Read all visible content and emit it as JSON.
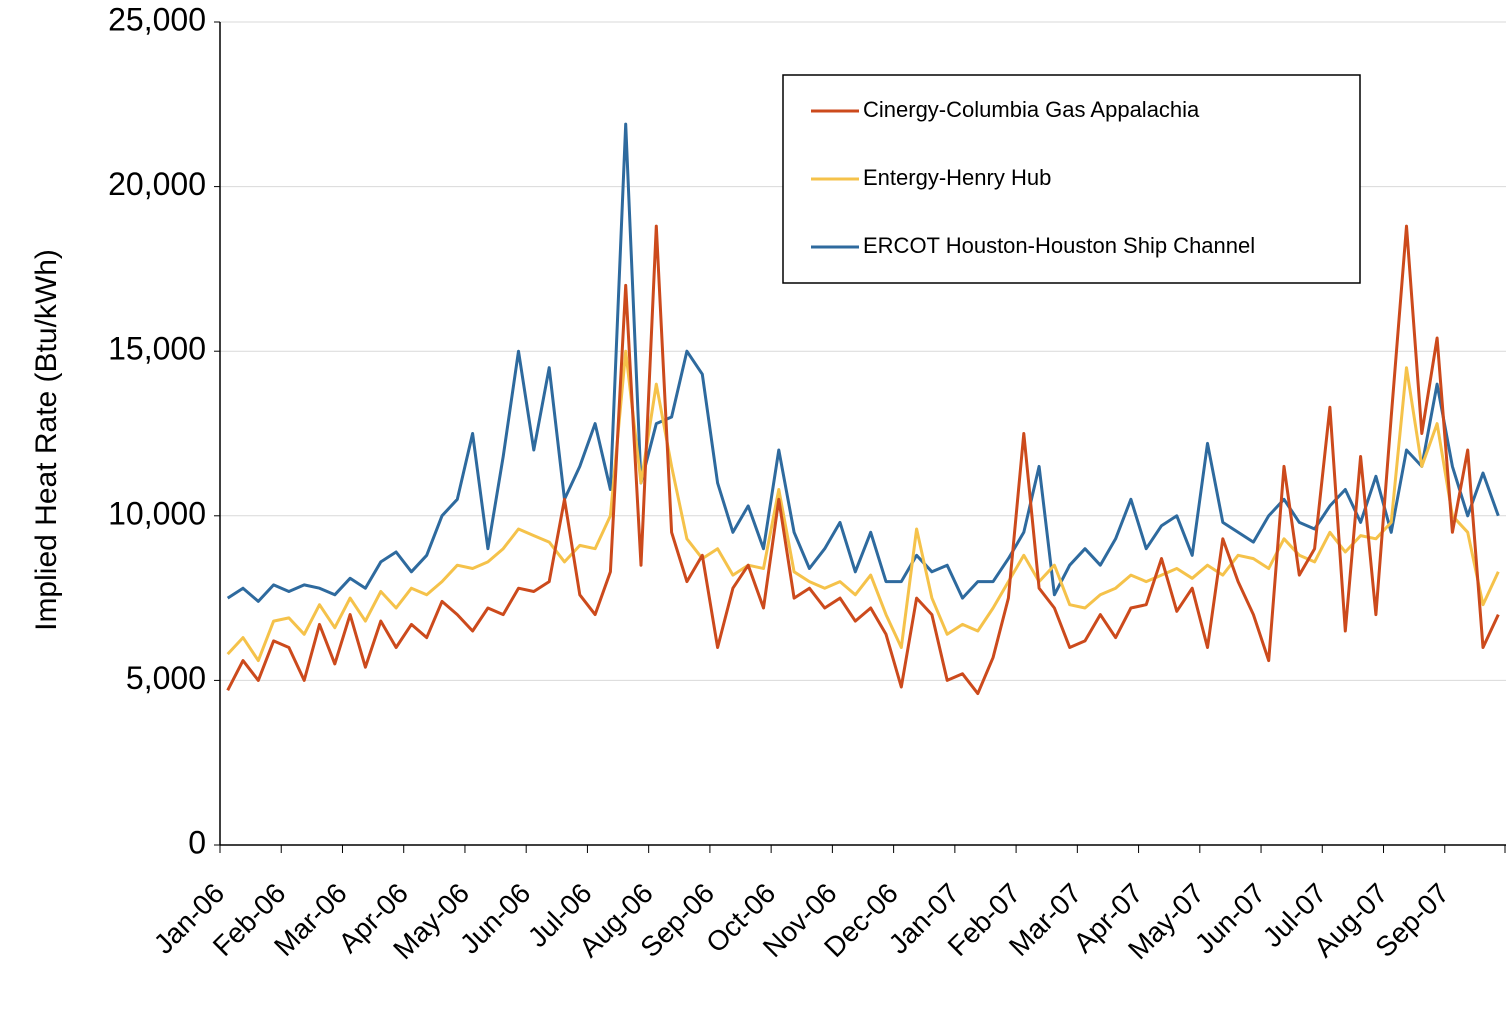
{
  "chart_data": {
    "type": "line",
    "y_label": "Implied Heat Rate (Btu/kWh)",
    "categories": [
      "Jan-06",
      null,
      null,
      null,
      "Feb-06",
      null,
      null,
      null,
      "Mar-06",
      null,
      null,
      null,
      "Apr-06",
      null,
      null,
      null,
      "May-06",
      null,
      null,
      null,
      "Jun-06",
      null,
      null,
      null,
      "Jul-06",
      null,
      null,
      null,
      "Aug-06",
      null,
      null,
      null,
      "Sep-06",
      null,
      null,
      null,
      "Oct-06",
      null,
      null,
      null,
      "Nov-06",
      null,
      null,
      null,
      "Dec-06",
      null,
      null,
      null,
      "Jan-07",
      null,
      null,
      null,
      "Feb-07",
      null,
      null,
      null,
      "Mar-07",
      null,
      null,
      null,
      "Apr-07",
      null,
      null,
      null,
      "May-07",
      null,
      null,
      null,
      "Jun-07",
      null,
      null,
      null,
      "Jul-07",
      null,
      null,
      null,
      "Aug-07",
      null,
      null,
      null,
      "Sep-07",
      null,
      null,
      null
    ],
    "series": [
      {
        "name": "Cinergy-Columbia Gas Appalachia",
        "color": "#cc4a1c",
        "values": [
          4700,
          5600,
          5000,
          6200,
          6000,
          5000,
          6700,
          5500,
          7000,
          5400,
          6800,
          6000,
          6700,
          6300,
          7400,
          7000,
          6500,
          7200,
          7000,
          7800,
          7700,
          8000,
          10500,
          7600,
          7000,
          8300,
          17000,
          8500,
          18800,
          9500,
          8000,
          8800,
          6000,
          7800,
          8500,
          7200,
          10500,
          7500,
          7800,
          7200,
          7500,
          6800,
          7200,
          6400,
          4800,
          7500,
          7000,
          5000,
          5200,
          4600,
          5700,
          7500,
          12500,
          7800,
          7200,
          6000,
          6200,
          7000,
          6300,
          7200,
          7300,
          8700,
          7100,
          7800,
          6000,
          9300,
          8000,
          7000,
          5600,
          11500,
          8200,
          9000,
          13300,
          6500,
          11800,
          7000,
          13000,
          18800,
          12500,
          15400,
          9500,
          12000,
          6000,
          7000
        ]
      },
      {
        "name": "Entergy-Henry Hub",
        "color": "#f5c24a",
        "values": [
          5800,
          6300,
          5600,
          6800,
          6900,
          6400,
          7300,
          6600,
          7500,
          6800,
          7700,
          7200,
          7800,
          7600,
          8000,
          8500,
          8400,
          8600,
          9000,
          9600,
          9400,
          9200,
          8600,
          9100,
          9000,
          10000,
          15000,
          11000,
          14000,
          11500,
          9300,
          8700,
          9000,
          8200,
          8500,
          8400,
          10800,
          8300,
          8000,
          7800,
          8000,
          7600,
          8200,
          7000,
          6000,
          9600,
          7500,
          6400,
          6700,
          6500,
          7200,
          8000,
          8800,
          8000,
          8500,
          7300,
          7200,
          7600,
          7800,
          8200,
          8000,
          8200,
          8400,
          8100,
          8500,
          8200,
          8800,
          8700,
          8400,
          9300,
          8800,
          8600,
          9500,
          8900,
          9400,
          9300,
          9800,
          14500,
          11500,
          12800,
          10000,
          9500,
          7300,
          8300
        ]
      },
      {
        "name": "ERCOT Houston-Houston Ship Channel",
        "color": "#2e6a9e",
        "values": [
          7500,
          7800,
          7400,
          7900,
          7700,
          7900,
          7800,
          7600,
          8100,
          7800,
          8600,
          8900,
          8300,
          8800,
          10000,
          10500,
          12500,
          9000,
          11800,
          15000,
          12000,
          14500,
          10500,
          11500,
          12800,
          10800,
          21900,
          11000,
          12800,
          13000,
          15000,
          14300,
          11000,
          9500,
          10300,
          9000,
          12000,
          9500,
          8400,
          9000,
          9800,
          8300,
          9500,
          8000,
          8000,
          8800,
          8300,
          8500,
          7500,
          8000,
          8000,
          8700,
          9500,
          11500,
          7600,
          8500,
          9000,
          8500,
          9300,
          10500,
          9000,
          9700,
          10000,
          8800,
          12200,
          9800,
          9500,
          9200,
          10000,
          10500,
          9800,
          9600,
          10300,
          10800,
          9800,
          11200,
          9500,
          12000,
          11500,
          14000,
          11500,
          10000,
          11300,
          10000
        ]
      }
    ],
    "ylim": [
      0,
      25000
    ],
    "yticks": [
      0,
      {
        "value": 5000,
        "label": "5,000"
      },
      {
        "value": 10000,
        "label": "10,000"
      },
      {
        "value": 15000,
        "label": "15,000"
      },
      {
        "value": 20000,
        "label": "20,000"
      },
      {
        "value": 25000,
        "label": "25,000"
      }
    ],
    "grid": true,
    "legend": "upper right"
  }
}
